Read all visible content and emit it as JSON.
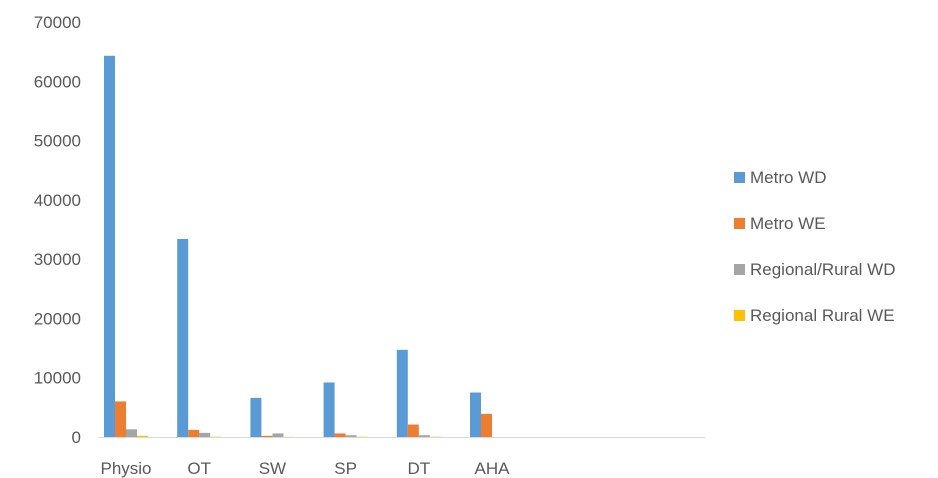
{
  "chart_data": {
    "type": "bar",
    "title": "",
    "xlabel": "",
    "ylabel": "",
    "ylim": [
      0,
      70000
    ],
    "yticks": [
      0,
      10000,
      20000,
      30000,
      40000,
      50000,
      60000,
      70000
    ],
    "grid": false,
    "legend_position": "right",
    "categories": [
      "Physio",
      "OT",
      "SW",
      "SP",
      "DT",
      "AHA"
    ],
    "series": [
      {
        "name": "Metro WD",
        "color": "#5B9BD5",
        "values": [
          64300,
          33400,
          6600,
          9200,
          14700,
          7500
        ]
      },
      {
        "name": "Metro WE",
        "color": "#ED7D31",
        "values": [
          6000,
          1200,
          200,
          600,
          2100,
          3900
        ]
      },
      {
        "name": "Regional/Rural WD",
        "color": "#A5A5A5",
        "values": [
          1300,
          700,
          600,
          300,
          300,
          0
        ]
      },
      {
        "name": "Regional Rural WE",
        "color": "#FFC000",
        "values": [
          200,
          50,
          20,
          50,
          50,
          0
        ]
      }
    ]
  }
}
